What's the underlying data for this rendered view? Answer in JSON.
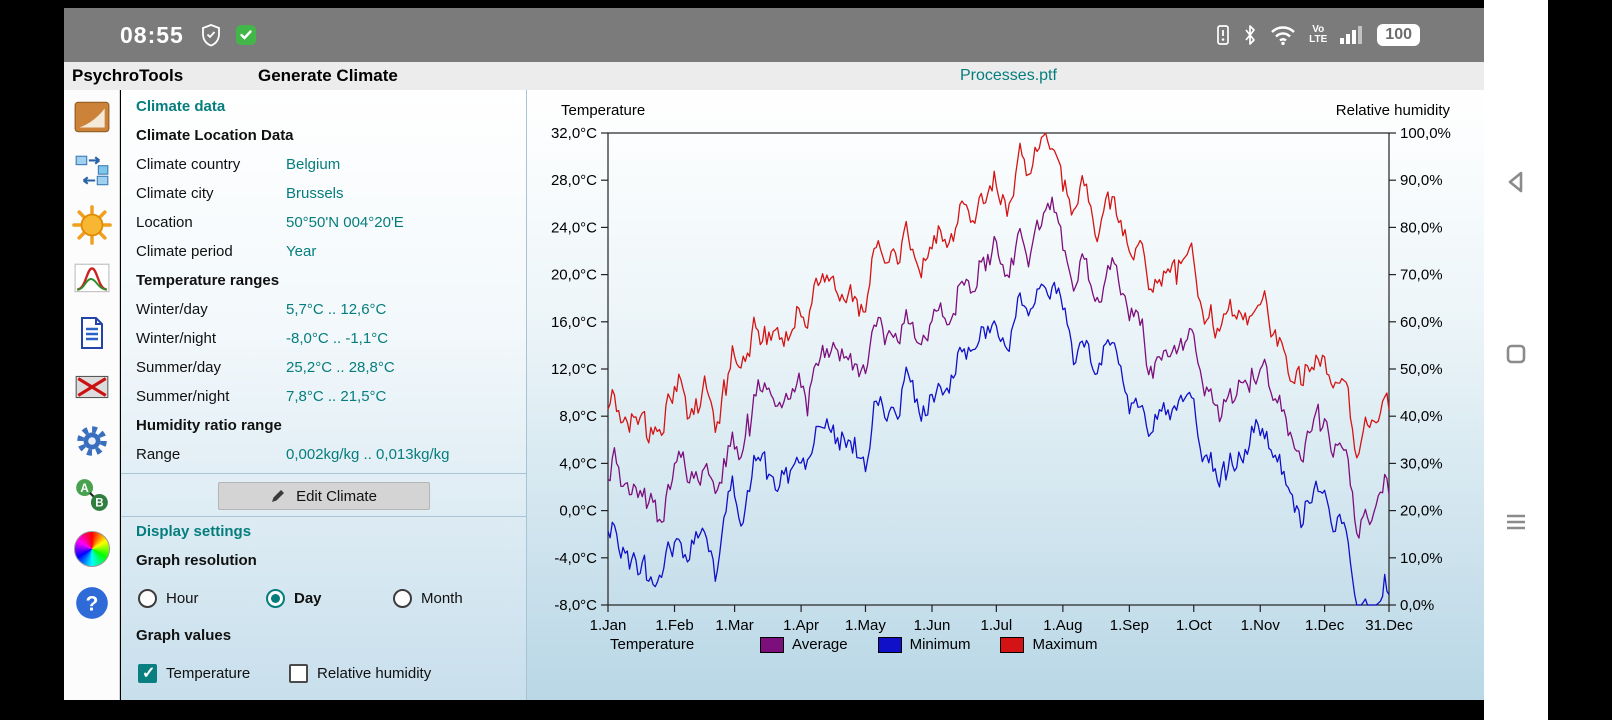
{
  "status_bar": {
    "time": "08:55",
    "volte": [
      "Vo",
      "LTE"
    ],
    "battery_percent": "100"
  },
  "app_bar": {
    "app_title": "PsychroTools",
    "screen_title": "Generate Climate",
    "open_file": "Processes.ptf"
  },
  "sidebar": {
    "tools": [
      "psychrometric-chart",
      "process-flow",
      "generate-climate",
      "distribution",
      "report",
      "heat-exchanger",
      "settings",
      "process-ab",
      "colors",
      "help"
    ]
  },
  "form": {
    "title": "Climate data",
    "location_section": "Climate Location Data",
    "location_rows": [
      {
        "label": "Climate country",
        "value": "Belgium"
      },
      {
        "label": "Climate city",
        "value": "Brussels"
      },
      {
        "label": "Location",
        "value": "50°50'N  004°20'E"
      },
      {
        "label": "Climate period",
        "value": "Year"
      }
    ],
    "temperature_section": "Temperature ranges",
    "temperature_rows": [
      {
        "label": "Winter/day",
        "value": "5,7°C .. 12,6°C"
      },
      {
        "label": "Winter/night",
        "value": "-8,0°C .. -1,1°C"
      },
      {
        "label": "Summer/day",
        "value": "25,2°C .. 28,8°C"
      },
      {
        "label": "Summer/night",
        "value": "7,8°C .. 21,5°C"
      }
    ],
    "humidity_section": "Humidity ratio range",
    "humidity_rows": [
      {
        "label": "Range",
        "value": "0,002kg/kg .. 0,013kg/kg"
      }
    ],
    "edit_button": "Edit Climate",
    "display_section": "Display settings",
    "resolution_label": "Graph resolution",
    "resolution_options": [
      {
        "label": "Hour",
        "selected": false
      },
      {
        "label": "Day",
        "selected": true
      },
      {
        "label": "Month",
        "selected": false
      }
    ],
    "values_label": "Graph values",
    "value_options": [
      {
        "label": "Temperature",
        "checked": true
      },
      {
        "label": "Relative humidity",
        "checked": false
      }
    ]
  },
  "chart_data": {
    "type": "line",
    "y_axis_left": {
      "title": "Temperature",
      "min": -8,
      "max": 32,
      "step": 4,
      "unit": "°C",
      "tick_labels": [
        "32,0°C",
        "28,0°C",
        "24,0°C",
        "20,0°C",
        "16,0°C",
        "12,0°C",
        "8,0°C",
        "4,0°C",
        "0,0°C",
        "-4,0°C",
        "-8,0°C"
      ]
    },
    "y_axis_right": {
      "title": "Relative humidity",
      "min": 0,
      "max": 100,
      "step": 10,
      "unit": "%",
      "tick_labels": [
        "100,0%",
        "90,0%",
        "80,0%",
        "70,0%",
        "60,0%",
        "50,0%",
        "40,0%",
        "30,0%",
        "20,0%",
        "10,0%",
        "0,0%"
      ]
    },
    "x_axis": {
      "unit": "day of year",
      "anchor_days": [
        0,
        31,
        59,
        90,
        120,
        151,
        181,
        212,
        243,
        273,
        304,
        334,
        364
      ],
      "tick_labels": [
        "1.Jan",
        "1.Feb",
        "1.Mar",
        "1.Apr",
        "1.May",
        "1.Jun",
        "1.Jul",
        "1.Aug",
        "1.Sep",
        "1.Oct",
        "1.Nov",
        "1.Dec",
        "31.Dec"
      ]
    },
    "series": [
      {
        "name": "Average",
        "color": "#7d0f7d",
        "anchor_values": [
          1.5,
          3.5,
          6.0,
          9.5,
          13.5,
          17.5,
          21.0,
          21.0,
          17.5,
          13.0,
          8.0,
          3.5,
          1.0
        ]
      },
      {
        "name": "Minimum",
        "color": "#1010c8",
        "anchor_values": [
          -4.5,
          -2.5,
          0.5,
          3.5,
          7.5,
          11.5,
          15.0,
          15.0,
          11.5,
          7.5,
          2.5,
          -2.0,
          -7.5
        ]
      },
      {
        "name": "Maximum",
        "color": "#d41414",
        "anchor_values": [
          6.5,
          9.5,
          12.0,
          15.5,
          20.0,
          24.0,
          27.5,
          27.5,
          24.0,
          19.0,
          13.5,
          9.5,
          8.5
        ]
      }
    ],
    "daily_variation_amplitude_c": 4,
    "legend": {
      "group_label": "Temperature",
      "items": [
        {
          "label": "Average",
          "color": "#7d0f7d"
        },
        {
          "label": "Minimum",
          "color": "#1010c8"
        },
        {
          "label": "Maximum",
          "color": "#d41414"
        }
      ]
    }
  }
}
